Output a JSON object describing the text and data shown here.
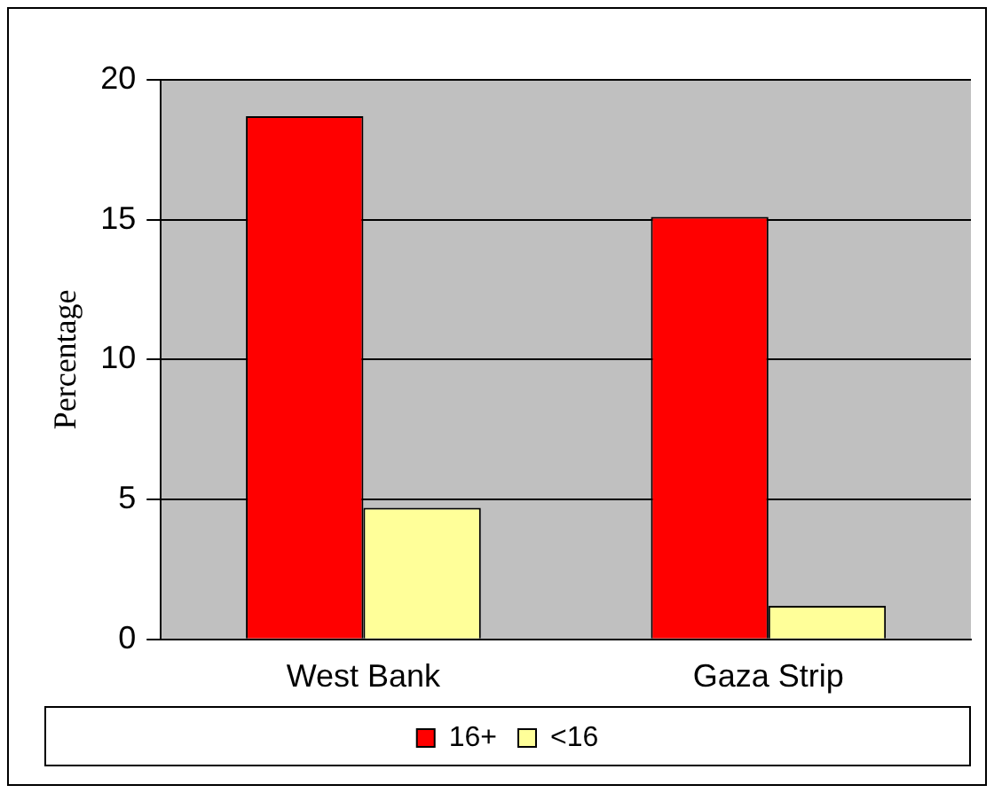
{
  "chart_data": {
    "type": "bar",
    "ylabel": "Percentage",
    "categories": [
      "West Bank",
      "Gaza Strip"
    ],
    "series": [
      {
        "name": "16+",
        "color": "#ff0000",
        "values": [
          18.7,
          15.1
        ]
      },
      {
        "name": "<16",
        "color": "#ffff99",
        "values": [
          4.7,
          1.2
        ]
      }
    ],
    "ylim": [
      0,
      20
    ],
    "yticks": [
      0,
      5,
      10,
      15,
      20
    ],
    "grid": "y",
    "legend": "bottom"
  }
}
